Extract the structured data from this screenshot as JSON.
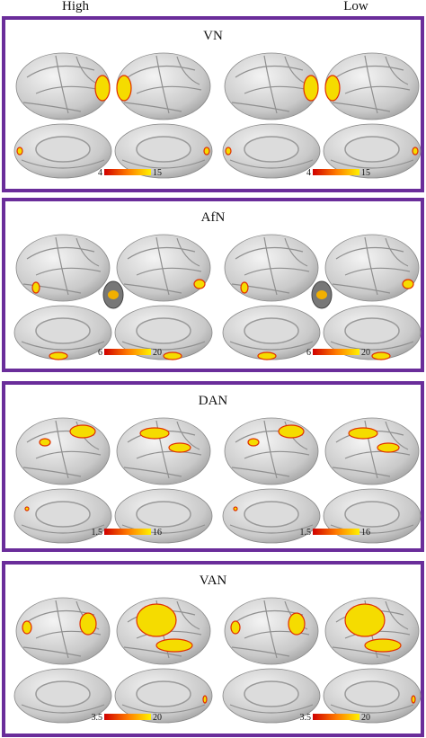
{
  "column_headers": [
    "High",
    "Low"
  ],
  "panels": [
    {
      "title": "VN",
      "colorbar": {
        "min": 4,
        "max": 15
      }
    },
    {
      "title": "AfN",
      "colorbar": {
        "min": 6,
        "max": 20
      }
    },
    {
      "title": "DAN",
      "colorbar": {
        "min": 1.5,
        "max": 16
      }
    },
    {
      "title": "VAN",
      "colorbar": {
        "min": 3.5,
        "max": 20
      }
    }
  ]
}
